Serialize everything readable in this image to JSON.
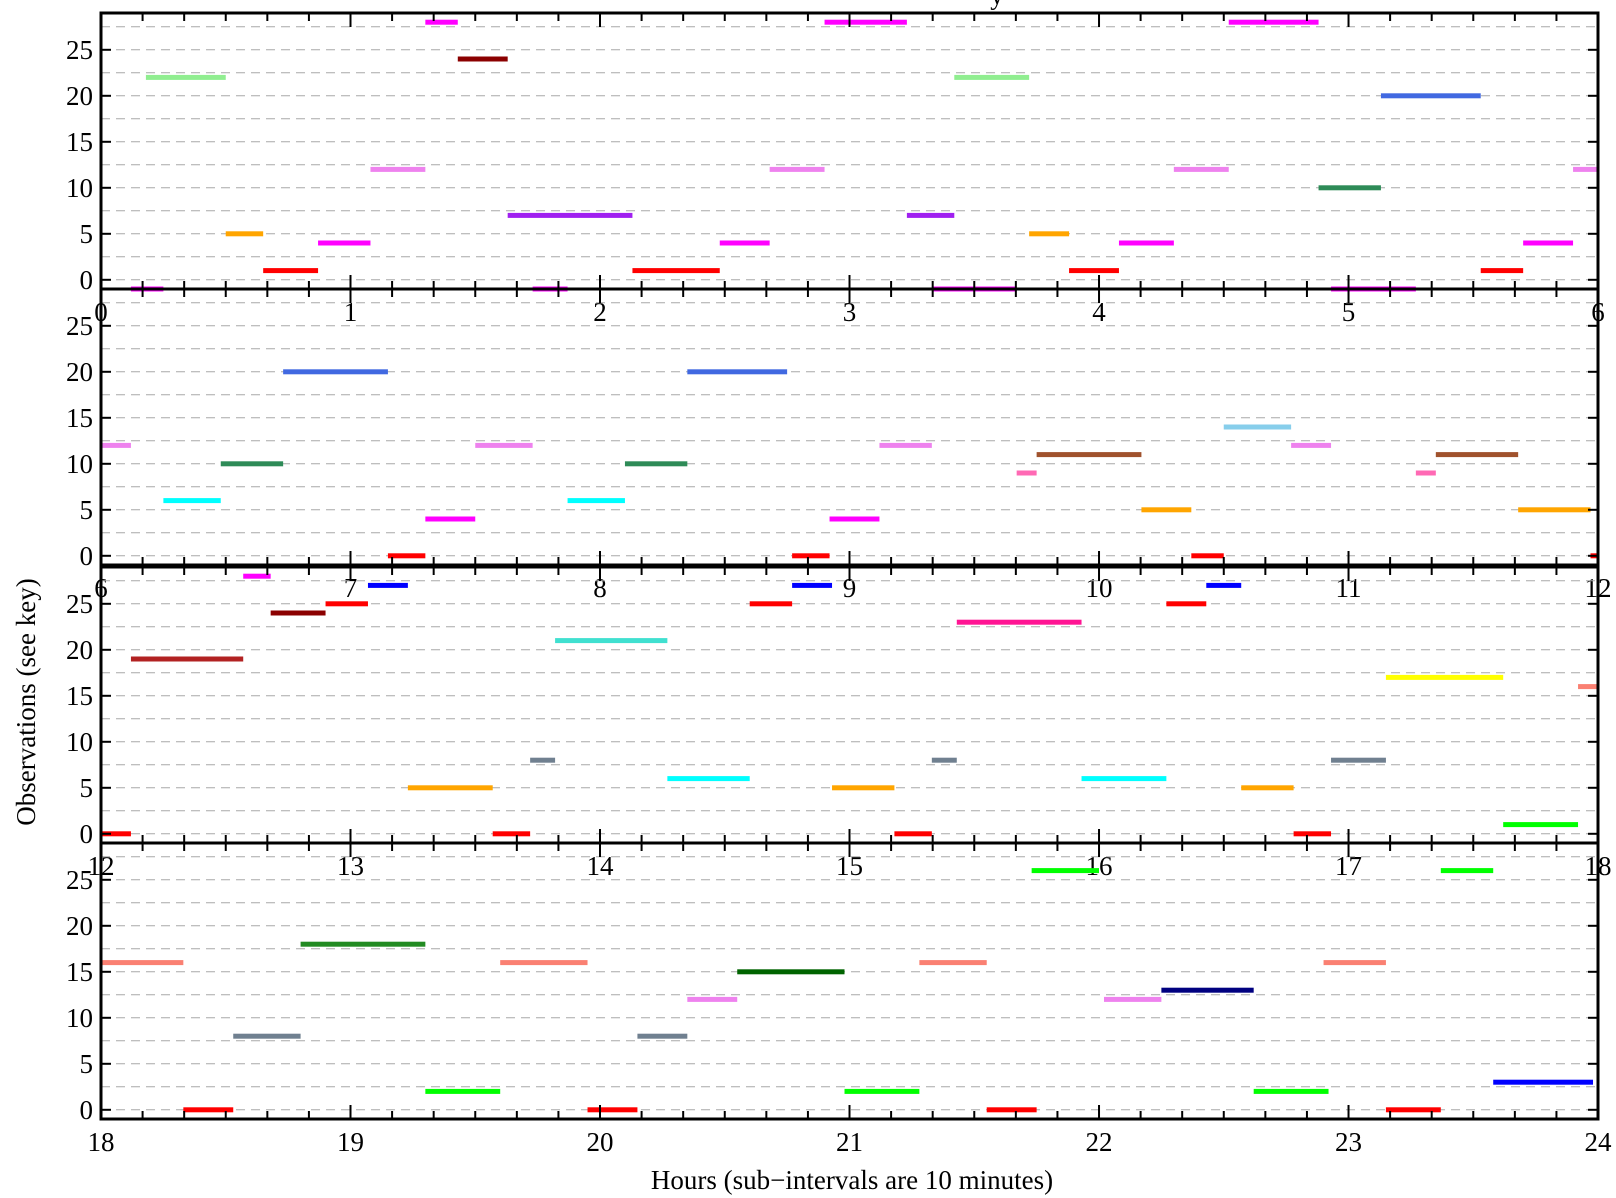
{
  "chart_data": {
    "type": "timeline",
    "title_fragment": "y",
    "xlabel": "Hours (sub−intervals are 10 minutes)",
    "ylabel": "Observations (see key)",
    "ylim": [
      -1,
      29
    ],
    "yticks": [
      0,
      5,
      10,
      15,
      20,
      25
    ],
    "minor_x_interval_hours": 0.16667,
    "grid": "horizontal dashed every 2.5",
    "panels": [
      {
        "xlim": [
          0,
          6
        ],
        "xticks": [
          0,
          1,
          2,
          3,
          4,
          5,
          6
        ],
        "segments": [
          {
            "obs": 28,
            "start": 1.3,
            "end": 1.43,
            "color": "#ff00ff"
          },
          {
            "obs": 28,
            "start": 2.9,
            "end": 3.23,
            "color": "#ff00ff"
          },
          {
            "obs": 28,
            "start": 4.52,
            "end": 4.88,
            "color": "#ff00ff"
          },
          {
            "obs": 24,
            "start": 1.43,
            "end": 1.63,
            "color": "#8b0000"
          },
          {
            "obs": 22,
            "start": 0.18,
            "end": 0.5,
            "color": "#90ee90"
          },
          {
            "obs": 22,
            "start": 3.42,
            "end": 3.72,
            "color": "#90ee90"
          },
          {
            "obs": 20,
            "start": 5.13,
            "end": 5.53,
            "color": "#4169e1"
          },
          {
            "obs": 12,
            "start": 1.08,
            "end": 1.3,
            "color": "#ee82ee"
          },
          {
            "obs": 12,
            "start": 2.68,
            "end": 2.9,
            "color": "#ee82ee"
          },
          {
            "obs": 12,
            "start": 4.3,
            "end": 4.52,
            "color": "#ee82ee"
          },
          {
            "obs": 12,
            "start": 5.9,
            "end": 6.0,
            "color": "#ee82ee"
          },
          {
            "obs": 10,
            "start": 4.88,
            "end": 5.13,
            "color": "#2e8b57"
          },
          {
            "obs": 7,
            "start": 1.63,
            "end": 2.13,
            "color": "#a020f0"
          },
          {
            "obs": 7,
            "start": 3.23,
            "end": 3.42,
            "color": "#a020f0"
          },
          {
            "obs": 5,
            "start": 0.5,
            "end": 0.65,
            "color": "#ffa500"
          },
          {
            "obs": 5,
            "start": 3.72,
            "end": 3.88,
            "color": "#ffa500"
          },
          {
            "obs": 4,
            "start": 0.87,
            "end": 1.08,
            "color": "#ff00ff"
          },
          {
            "obs": 4,
            "start": 2.48,
            "end": 2.68,
            "color": "#ff00ff"
          },
          {
            "obs": 4,
            "start": 4.08,
            "end": 4.3,
            "color": "#ff00ff"
          },
          {
            "obs": 4,
            "start": 5.7,
            "end": 5.9,
            "color": "#ff00ff"
          },
          {
            "obs": 1,
            "start": 0.65,
            "end": 0.87,
            "color": "#ff0000"
          },
          {
            "obs": 1,
            "start": 2.13,
            "end": 2.48,
            "color": "#ff0000"
          },
          {
            "obs": 1,
            "start": 3.88,
            "end": 4.08,
            "color": "#ff0000"
          },
          {
            "obs": 1,
            "start": 5.53,
            "end": 5.7,
            "color": "#ff0000"
          },
          {
            "obs": -1,
            "start": 0.12,
            "end": 0.25,
            "color": "#ff00ff"
          },
          {
            "obs": -1,
            "start": 1.73,
            "end": 1.87,
            "color": "#ff00ff"
          },
          {
            "obs": -1,
            "start": 3.33,
            "end": 3.67,
            "color": "#ff00ff"
          },
          {
            "obs": -1,
            "start": 4.93,
            "end": 5.27,
            "color": "#ff00ff"
          }
        ]
      },
      {
        "xlim": [
          6,
          12
        ],
        "xticks": [
          6,
          7,
          8,
          9,
          10,
          11,
          12
        ],
        "segments": [
          {
            "obs": 20,
            "start": 6.73,
            "end": 7.15,
            "color": "#4169e1"
          },
          {
            "obs": 20,
            "start": 8.35,
            "end": 8.75,
            "color": "#4169e1"
          },
          {
            "obs": 14,
            "start": 10.5,
            "end": 10.77,
            "color": "#87ceeb"
          },
          {
            "obs": 12,
            "start": 6.0,
            "end": 6.12,
            "color": "#ee82ee"
          },
          {
            "obs": 12,
            "start": 7.5,
            "end": 7.73,
            "color": "#ee82ee"
          },
          {
            "obs": 12,
            "start": 9.12,
            "end": 9.33,
            "color": "#ee82ee"
          },
          {
            "obs": 12,
            "start": 10.77,
            "end": 10.93,
            "color": "#ee82ee"
          },
          {
            "obs": 11,
            "start": 9.75,
            "end": 10.17,
            "color": "#a0522d"
          },
          {
            "obs": 11,
            "start": 11.35,
            "end": 11.68,
            "color": "#a0522d"
          },
          {
            "obs": 10,
            "start": 6.48,
            "end": 6.73,
            "color": "#2e8b57"
          },
          {
            "obs": 10,
            "start": 8.1,
            "end": 8.35,
            "color": "#2e8b57"
          },
          {
            "obs": 9,
            "start": 9.67,
            "end": 9.75,
            "color": "#ff69b4"
          },
          {
            "obs": 9,
            "start": 11.27,
            "end": 11.35,
            "color": "#ff69b4"
          },
          {
            "obs": 6,
            "start": 6.25,
            "end": 6.48,
            "color": "#00ffff"
          },
          {
            "obs": 6,
            "start": 7.87,
            "end": 8.1,
            "color": "#00ffff"
          },
          {
            "obs": 5,
            "start": 10.17,
            "end": 10.37,
            "color": "#ffa500"
          },
          {
            "obs": 5,
            "start": 11.68,
            "end": 11.97,
            "color": "#ffa500"
          },
          {
            "obs": 4,
            "start": 7.3,
            "end": 7.5,
            "color": "#ff00ff"
          },
          {
            "obs": 4,
            "start": 8.92,
            "end": 9.12,
            "color": "#ff00ff"
          },
          {
            "obs": 0,
            "start": 7.15,
            "end": 7.3,
            "color": "#ff0000"
          },
          {
            "obs": 0,
            "start": 8.77,
            "end": 8.92,
            "color": "#ff0000"
          },
          {
            "obs": 0,
            "start": 10.37,
            "end": 10.5,
            "color": "#ff0000"
          },
          {
            "obs": 0,
            "start": 11.97,
            "end": 12.0,
            "color": "#ff0000"
          }
        ]
      },
      {
        "xlim": [
          12,
          18
        ],
        "xticks": [
          12,
          13,
          14,
          15,
          16,
          17,
          18
        ],
        "segments": [
          {
            "obs": 28,
            "start": 12.57,
            "end": 12.68,
            "color": "#ff00ff"
          },
          {
            "obs": 27,
            "start": 13.07,
            "end": 13.23,
            "color": "#0000ff"
          },
          {
            "obs": 27,
            "start": 14.77,
            "end": 14.93,
            "color": "#0000ff"
          },
          {
            "obs": 27,
            "start": 16.43,
            "end": 16.57,
            "color": "#0000ff"
          },
          {
            "obs": 25,
            "start": 12.9,
            "end": 13.07,
            "color": "#ff0000"
          },
          {
            "obs": 25,
            "start": 14.6,
            "end": 14.77,
            "color": "#ff0000"
          },
          {
            "obs": 25,
            "start": 16.27,
            "end": 16.43,
            "color": "#ff0000"
          },
          {
            "obs": 24,
            "start": 12.68,
            "end": 12.9,
            "color": "#8b0000"
          },
          {
            "obs": 23,
            "start": 15.43,
            "end": 15.93,
            "color": "#ff1493"
          },
          {
            "obs": 21,
            "start": 13.82,
            "end": 14.27,
            "color": "#40e0d0"
          },
          {
            "obs": 19,
            "start": 12.12,
            "end": 12.57,
            "color": "#b22222"
          },
          {
            "obs": 17,
            "start": 17.15,
            "end": 17.62,
            "color": "#ffff00"
          },
          {
            "obs": 16,
            "start": 17.92,
            "end": 18.0,
            "color": "#fa8072"
          },
          {
            "obs": 8,
            "start": 13.72,
            "end": 13.82,
            "color": "#708090"
          },
          {
            "obs": 8,
            "start": 15.33,
            "end": 15.43,
            "color": "#708090"
          },
          {
            "obs": 8,
            "start": 16.93,
            "end": 17.15,
            "color": "#708090"
          },
          {
            "obs": 6,
            "start": 14.27,
            "end": 14.6,
            "color": "#00ffff"
          },
          {
            "obs": 6,
            "start": 15.93,
            "end": 16.27,
            "color": "#00ffff"
          },
          {
            "obs": 5,
            "start": 13.23,
            "end": 13.57,
            "color": "#ffa500"
          },
          {
            "obs": 5,
            "start": 14.93,
            "end": 15.18,
            "color": "#ffa500"
          },
          {
            "obs": 5,
            "start": 16.57,
            "end": 16.78,
            "color": "#ffa500"
          },
          {
            "obs": 1,
            "start": 17.62,
            "end": 17.92,
            "color": "#00ff00"
          },
          {
            "obs": 0,
            "start": 12.0,
            "end": 12.12,
            "color": "#ff0000"
          },
          {
            "obs": 0,
            "start": 13.57,
            "end": 13.72,
            "color": "#ff0000"
          },
          {
            "obs": 0,
            "start": 15.18,
            "end": 15.33,
            "color": "#ff0000"
          },
          {
            "obs": 0,
            "start": 16.78,
            "end": 16.93,
            "color": "#ff0000"
          }
        ]
      },
      {
        "xlim": [
          18,
          24
        ],
        "xticks": [
          18,
          19,
          20,
          21,
          22,
          23,
          24
        ],
        "segments": [
          {
            "obs": 26,
            "start": 21.73,
            "end": 22.0,
            "color": "#00ff00"
          },
          {
            "obs": 26,
            "start": 23.37,
            "end": 23.58,
            "color": "#00ff00"
          },
          {
            "obs": 18,
            "start": 18.8,
            "end": 19.3,
            "color": "#228b22"
          },
          {
            "obs": 16,
            "start": 18.0,
            "end": 18.33,
            "color": "#fa8072"
          },
          {
            "obs": 16,
            "start": 19.6,
            "end": 19.95,
            "color": "#fa8072"
          },
          {
            "obs": 16,
            "start": 21.28,
            "end": 21.55,
            "color": "#fa8072"
          },
          {
            "obs": 16,
            "start": 22.9,
            "end": 23.15,
            "color": "#fa8072"
          },
          {
            "obs": 15,
            "start": 20.55,
            "end": 20.98,
            "color": "#006400"
          },
          {
            "obs": 13,
            "start": 22.25,
            "end": 22.62,
            "color": "#000080"
          },
          {
            "obs": 12,
            "start": 20.35,
            "end": 20.55,
            "color": "#ee82ee"
          },
          {
            "obs": 12,
            "start": 22.02,
            "end": 22.25,
            "color": "#ee82ee"
          },
          {
            "obs": 8,
            "start": 18.53,
            "end": 18.8,
            "color": "#708090"
          },
          {
            "obs": 8,
            "start": 20.15,
            "end": 20.35,
            "color": "#708090"
          },
          {
            "obs": 3,
            "start": 23.58,
            "end": 23.98,
            "color": "#0000ff"
          },
          {
            "obs": 2,
            "start": 19.3,
            "end": 19.6,
            "color": "#00ff00"
          },
          {
            "obs": 2,
            "start": 20.98,
            "end": 21.28,
            "color": "#00ff00"
          },
          {
            "obs": 2,
            "start": 22.62,
            "end": 22.92,
            "color": "#00ff00"
          },
          {
            "obs": 0,
            "start": 18.33,
            "end": 18.53,
            "color": "#ff0000"
          },
          {
            "obs": 0,
            "start": 19.95,
            "end": 20.15,
            "color": "#ff0000"
          },
          {
            "obs": 0,
            "start": 21.55,
            "end": 21.75,
            "color": "#ff0000"
          },
          {
            "obs": 0,
            "start": 23.15,
            "end": 23.37,
            "color": "#ff0000"
          }
        ]
      }
    ]
  }
}
